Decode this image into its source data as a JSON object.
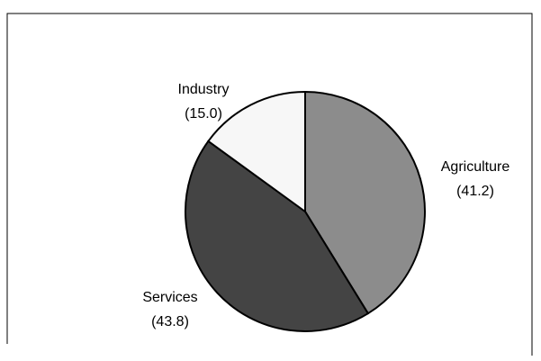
{
  "chart_data": {
    "type": "pie",
    "start_angle_deg": 0,
    "direction": "clockwise",
    "slices": [
      {
        "label": "Agriculture",
        "value": 41.2,
        "value_text": "(41.2)",
        "color": "#8c8c8c"
      },
      {
        "label": "Services",
        "value": 43.8,
        "value_text": "(43.8)",
        "color": "#444444"
      },
      {
        "label": "Industry",
        "value": 15.0,
        "value_text": "(15.0)",
        "color": "#f7f7f7"
      }
    ]
  }
}
